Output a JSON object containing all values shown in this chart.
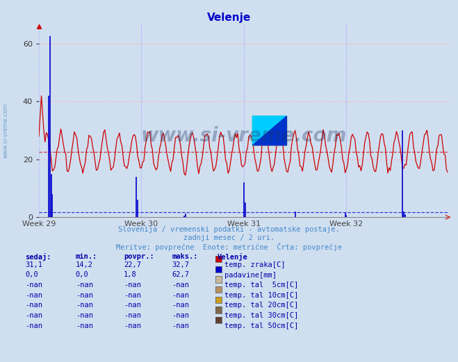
{
  "title": "Velenje",
  "title_color": "#0000cc",
  "bg_color": "#d0dff0",
  "plot_bg_color": "#d0dff0",
  "grid_color_red": "#ffaaaa",
  "grid_color_blue": "#aaaaff",
  "temp_color": "#cc0000",
  "precip_color": "#0000cc",
  "avg_temp_value": 22.7,
  "avg_precip_value": 1.8,
  "n_points": 336,
  "temp_mean": 22.7,
  "temp_amp": 6.5,
  "ylim_min": 0,
  "ylim_max": 67,
  "yticks": [
    0,
    20,
    40,
    60
  ],
  "week_labels": [
    "Week 29",
    "Week 30",
    "Week 31",
    "Week 32"
  ],
  "watermark_color": "#1a3060",
  "watermark_alpha": 0.32,
  "subtitle_color": "#4488cc",
  "subtitle1": "Slovenija / vremenski podatki - avtomatske postaje.",
  "subtitle2": "zadnji mesec / 2 uri.",
  "subtitle3": "Meritve: povprečne  Enote: metrične  Črta: povprečje",
  "table_header_color": "#0000aa",
  "table_data_color": "#0000aa",
  "table_rows": [
    [
      "31,1",
      "14,2",
      "22,7",
      "32,7",
      "temp. zraka[C]",
      "#cc0000"
    ],
    [
      "0,0",
      "0,0",
      "1,8",
      "62,7",
      "padavine[mm]",
      "#0000cc"
    ],
    [
      "-nan",
      "-nan",
      "-nan",
      "-nan",
      "temp. tal  5cm[C]",
      "#c8b89a"
    ],
    [
      "-nan",
      "-nan",
      "-nan",
      "-nan",
      "temp. tal 10cm[C]",
      "#b89060"
    ],
    [
      "-nan",
      "-nan",
      "-nan",
      "-nan",
      "temp. tal 20cm[C]",
      "#c8a020"
    ],
    [
      "-nan",
      "-nan",
      "-nan",
      "-nan",
      "temp. tal 30cm[C]",
      "#806848"
    ],
    [
      "-nan",
      "-nan",
      "-nan",
      "-nan",
      "temp. tal 50cm[C]",
      "#604030"
    ]
  ]
}
